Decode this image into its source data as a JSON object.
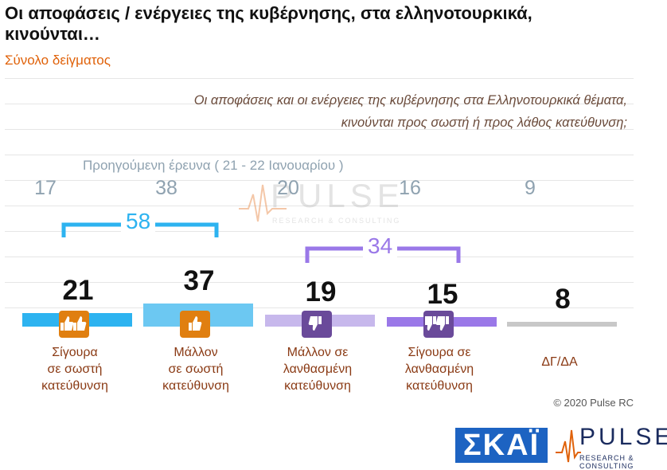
{
  "title": "Οι αποφάσεις / ενέργειες της κυβέρνησης, στα ελληνοτουρκικά, κινούνται…",
  "subtitle": "Σύνολο δείγματος",
  "question_line1": "Οι αποφάσεις και οι ενέργειες της κυβέρνησης στα Ελληνοτουρκικά θέματα,",
  "question_line2": "κινούνται προς σωστή ή προς λάθος κατεύθυνση;",
  "previous_caption": "Προηγούμενη έρευνα   ( 21 - 22  Ιανουαρίου )",
  "groups": {
    "positive_total": "58",
    "negative_total": "34"
  },
  "watermark": {
    "text": "PULSE",
    "sub": "RESEARCH & CONSULTING"
  },
  "copyright": "© 2020 Pulse RC",
  "logos": {
    "skai": "ΣΚΑΪ",
    "pulse": "PULSE",
    "pulse_sub": "RESEARCH & CONSULTING"
  },
  "colors": {
    "sure_right": "#2db3f0",
    "rather_right": "#6cc8f2",
    "rather_wrong": "#c7b8ec",
    "sure_wrong": "#9a78e8",
    "dk": "#c8c8c8",
    "icon_positive": "#e07f10",
    "icon_negative": "#6a4a9a",
    "bracket_positive": "#2db3f0",
    "bracket_negative": "#9a78e8"
  },
  "chart_data": {
    "type": "bar",
    "categories": [
      "Σίγουρα σε σωστή κατεύθυνση",
      "Μάλλον σε σωστή κατεύθυνση",
      "Μάλλον σε λανθασμένη κατεύθυνση",
      "Σίγουρα σε λανθασμένη κατεύθυνση",
      "ΔΓ/ΔΑ"
    ],
    "category_lines": [
      [
        "Σίγουρα",
        "σε σωστή",
        "κατεύθυνση"
      ],
      [
        "Μάλλον",
        "σε σωστή",
        "κατεύθυνση"
      ],
      [
        "Μάλλον σε",
        "λανθασμένη",
        "κατεύθυνση"
      ],
      [
        "Σίγουρα σε",
        "λανθασμένη",
        "κατεύθυνση"
      ],
      [
        "ΔΓ/ΔΑ"
      ]
    ],
    "series": [
      {
        "values": [
          21,
          37,
          19,
          15,
          8
        ]
      },
      {
        "name": "Προηγούμενη έρευνα ( 21 - 22 Ιανουαρίου )",
        "values": [
          17,
          38,
          20,
          16,
          9
        ]
      }
    ],
    "ylim": [
      0,
      100
    ]
  }
}
